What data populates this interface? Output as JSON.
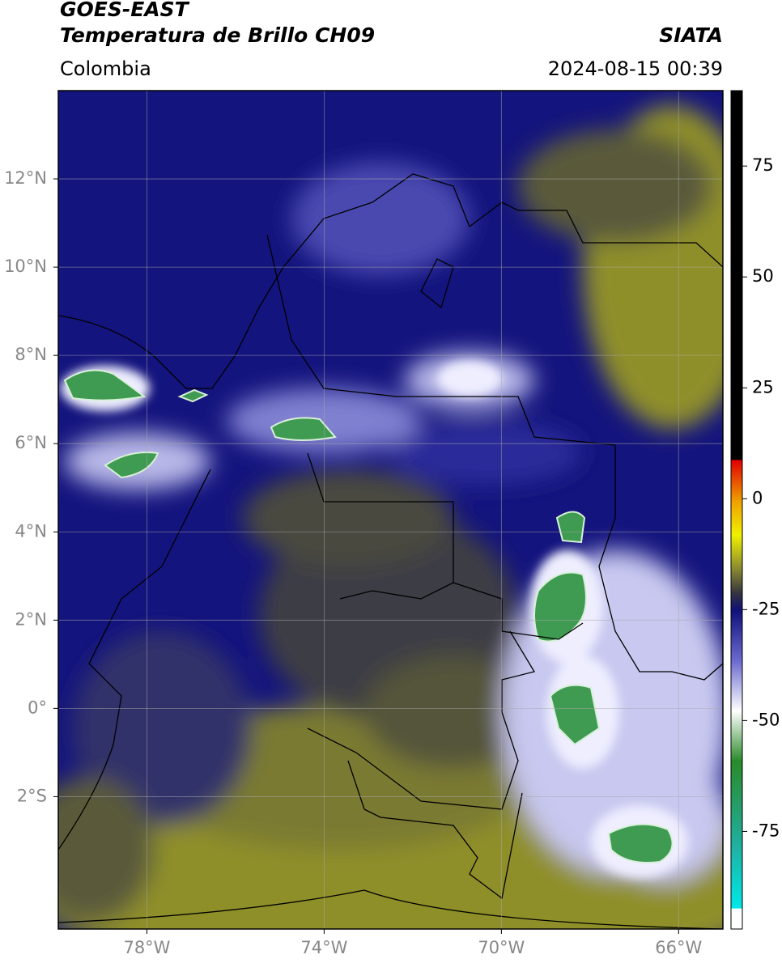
{
  "header": {
    "satellite": "GOES-EAST",
    "product": "Temperatura de Brillo CH09",
    "region": "Colombia",
    "source": "SIATA",
    "datetime": "2024-08-15 00:39"
  },
  "map": {
    "xlim": [
      -80,
      -65
    ],
    "ylim": [
      -5,
      14
    ],
    "xticks": [
      {
        "value": -78,
        "label": "78°W"
      },
      {
        "value": -74,
        "label": "74°W"
      },
      {
        "value": -70,
        "label": "70°W"
      },
      {
        "value": -66,
        "label": "66°W"
      }
    ],
    "yticks": [
      {
        "value": 12,
        "label": "12°N"
      },
      {
        "value": 10,
        "label": "10°N"
      },
      {
        "value": 8,
        "label": "8°N"
      },
      {
        "value": 6,
        "label": "6°N"
      },
      {
        "value": 4,
        "label": "4°N"
      },
      {
        "value": 2,
        "label": "2°N"
      },
      {
        "value": 0,
        "label": "0°"
      },
      {
        "value": -2,
        "label": "2°S"
      }
    ],
    "grid": true
  },
  "colorbar": {
    "lim": [
      -97,
      92
    ],
    "ticks": [
      75,
      50,
      25,
      0,
      -25,
      -50,
      -75
    ]
  }
}
